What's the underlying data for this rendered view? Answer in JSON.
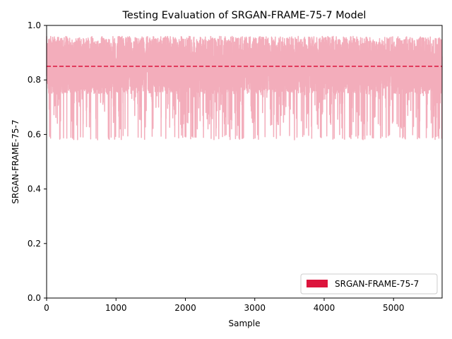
{
  "chart_data": {
    "type": "line",
    "title": "Testing Evaluation of SRGAN-FRAME-75-7 Model",
    "xlabel": "Sample",
    "ylabel": "SRGAN-FRAME-75-7",
    "xlim": [
      0,
      5700
    ],
    "ylim": [
      0.0,
      1.0
    ],
    "xticks": [
      0,
      1000,
      2000,
      3000,
      4000,
      5000
    ],
    "xtick_labels": [
      "0",
      "1000",
      "2000",
      "3000",
      "4000",
      "5000"
    ],
    "yticks": [
      0.0,
      0.2,
      0.4,
      0.6,
      0.8,
      1.0
    ],
    "ytick_labels": [
      "0.0",
      "0.2",
      "0.4",
      "0.6",
      "0.8",
      "1.0"
    ],
    "grid": false,
    "legend_position": "lower-right",
    "series": [
      {
        "name": "SRGAN-FRAME-75-7",
        "color": "#dc143c",
        "opacity": 0.35,
        "n_points": 5700,
        "typical_range": [
          0.75,
          0.96
        ],
        "min_value": 0.58,
        "max_value": 0.96
      }
    ],
    "reference_lines": [
      {
        "orientation": "horizontal",
        "y": 0.85,
        "color": "#dc143c",
        "style": "dashed"
      }
    ]
  }
}
